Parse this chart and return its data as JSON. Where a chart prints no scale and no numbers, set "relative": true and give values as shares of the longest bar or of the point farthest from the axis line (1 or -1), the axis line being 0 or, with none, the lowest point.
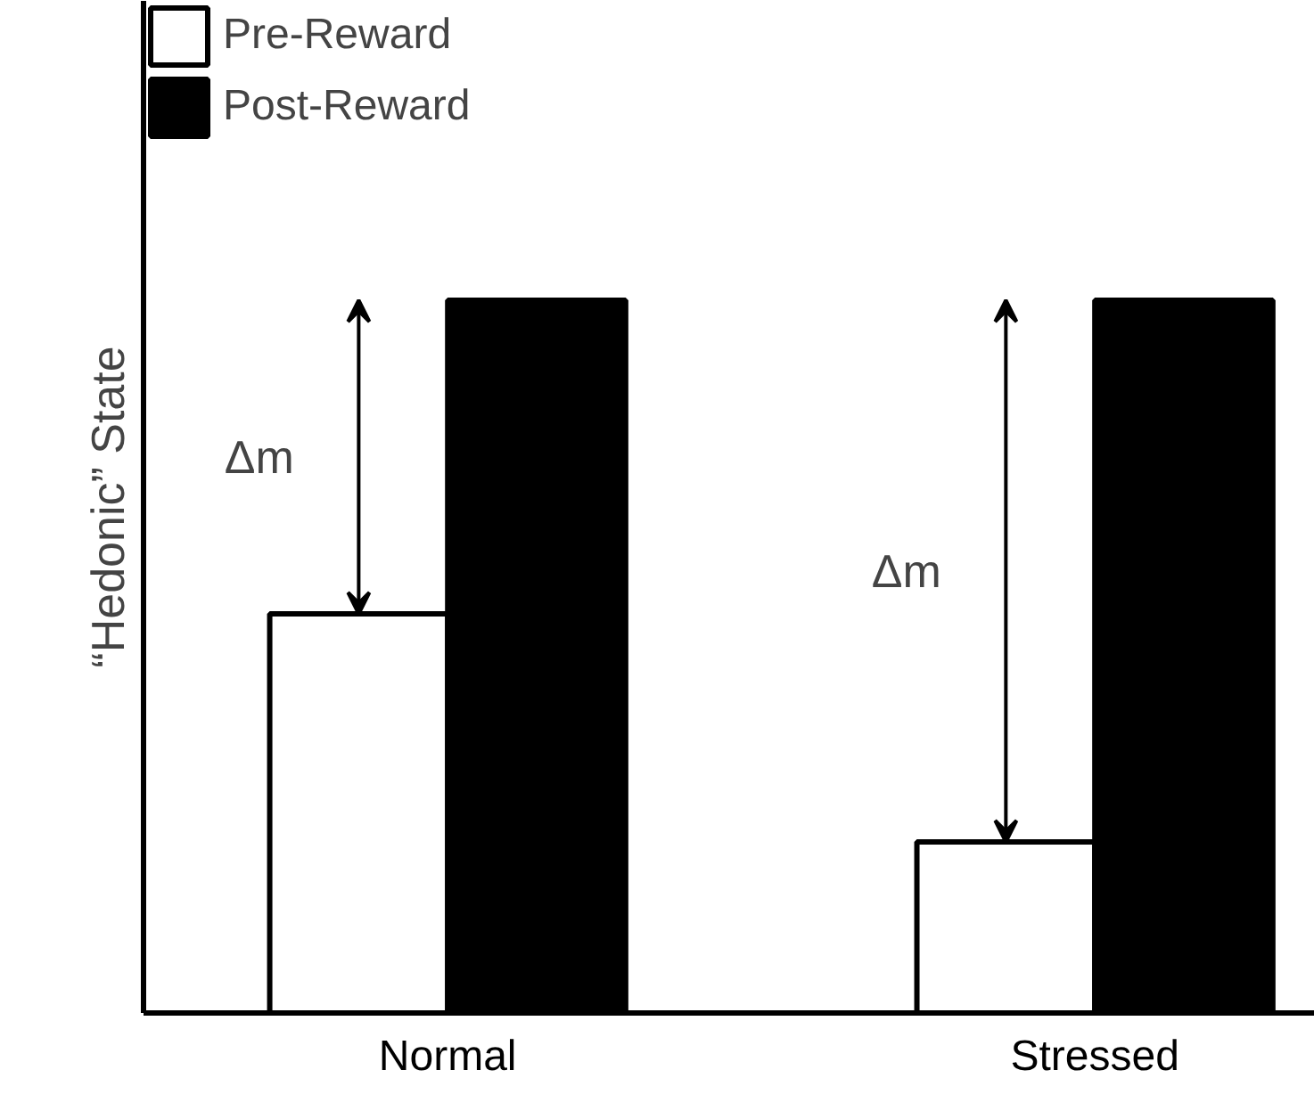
{
  "chart_data": {
    "type": "bar",
    "relative": true,
    "ylabel": "“Hedonic” State",
    "categories": [
      "Normal",
      "Stressed"
    ],
    "series": [
      {
        "name": "Pre-Reward",
        "color": "#ffffff",
        "values": [
          0.56,
          0.24
        ]
      },
      {
        "name": "Post-Reward",
        "color": "#000000",
        "values": [
          1,
          1
        ]
      }
    ],
    "annotations": [
      "Δm",
      "Δm"
    ],
    "legend": "top left",
    "grid": false
  }
}
